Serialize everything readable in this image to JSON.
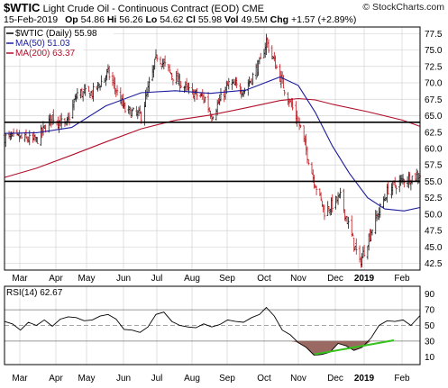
{
  "header": {
    "symbol": "$WTIC",
    "name": "Light Crude Oil - Continuous Contract (EOD)",
    "exchange": "CME",
    "watermark": "© StockCharts.com",
    "date": "15-Feb-2019",
    "op_label": "Op",
    "op": "54.86",
    "hi_label": "Hi",
    "hi": "56.26",
    "lo_label": "Lo",
    "lo": "54.62",
    "cl_label": "Cl",
    "cl": "55.98",
    "vol_label": "Vol",
    "vol": "49.5M",
    "chg_label": "Chg",
    "chg": "+1.57 (+2.89%)"
  },
  "legend": {
    "price": "$WTIC (Daily) 55.98",
    "ma50": "MA(50) 51.03",
    "ma200": "MA(200) 63.37",
    "rsi": "RSI(14) 62.67"
  },
  "colors": {
    "price": "#000000",
    "ma50": "#1c1c9c",
    "ma200": "#b0102a",
    "rsi_fill": "#9a6a62",
    "trend": "#34c21a",
    "grid": "#d4d4d4"
  },
  "chart_data": [
    {
      "type": "ohlc",
      "series": [
        {
          "name": "$WTIC (Daily)"
        },
        {
          "name": "MA(50)"
        },
        {
          "name": "MA(200)"
        }
      ],
      "x_labels": [
        "Mar",
        "Apr",
        "May",
        "Jun",
        "Jul",
        "Aug",
        "Sep",
        "Oct",
        "Nov",
        "Dec",
        "2019",
        "Feb"
      ],
      "y_ticks": [
        "42.5",
        "45.0",
        "47.5",
        "50.0",
        "52.5",
        "55.0",
        "57.5",
        "60.0",
        "62.5",
        "65.0",
        "67.5",
        "70.0",
        "72.5",
        "75.0",
        "77.5"
      ],
      "ylim": [
        41.5,
        78.5
      ],
      "horizontal_lines": [
        64.0,
        55.0
      ],
      "close_path": [
        [
          "2018-02-15",
          61.7
        ],
        [
          "2018-02-28",
          61.6
        ],
        [
          "2018-03-15",
          61.2
        ],
        [
          "2018-03-29",
          64.9
        ],
        [
          "2018-04-10",
          63.4
        ],
        [
          "2018-04-20",
          68.4
        ],
        [
          "2018-05-03",
          68.4
        ],
        [
          "2018-05-17",
          71.5
        ],
        [
          "2018-06-01",
          65.8
        ],
        [
          "2018-06-15",
          65.0
        ],
        [
          "2018-06-29",
          74.2
        ],
        [
          "2018-07-13",
          71.0
        ],
        [
          "2018-07-27",
          68.7
        ],
        [
          "2018-08-10",
          67.6
        ],
        [
          "2018-08-16",
          65.0
        ],
        [
          "2018-08-31",
          69.8
        ],
        [
          "2018-09-14",
          68.9
        ],
        [
          "2018-09-28",
          73.2
        ],
        [
          "2018-10-03",
          76.4
        ],
        [
          "2018-10-19",
          69.1
        ],
        [
          "2018-11-02",
          63.1
        ],
        [
          "2018-11-13",
          55.7
        ],
        [
          "2018-11-23",
          50.4
        ],
        [
          "2018-12-07",
          52.6
        ],
        [
          "2018-12-24",
          42.5
        ],
        [
          "2019-01-04",
          47.9
        ],
        [
          "2019-01-18",
          53.8
        ],
        [
          "2019-02-01",
          55.3
        ],
        [
          "2019-02-15",
          55.98
        ]
      ],
      "ma50_path": [
        [
          "2018-02-15",
          62.3
        ],
        [
          "2018-03-15",
          62.4
        ],
        [
          "2018-04-15",
          63.2
        ],
        [
          "2018-05-15",
          66.5
        ],
        [
          "2018-06-15",
          68.5
        ],
        [
          "2018-07-15",
          68.8
        ],
        [
          "2018-08-15",
          68.4
        ],
        [
          "2018-09-15",
          68.9
        ],
        [
          "2018-10-15",
          70.9
        ],
        [
          "2018-10-31",
          69.6
        ],
        [
          "2018-11-15",
          65.5
        ],
        [
          "2018-11-30",
          60.4
        ],
        [
          "2018-12-15",
          56.2
        ],
        [
          "2018-12-31",
          52.5
        ],
        [
          "2019-01-15",
          50.8
        ],
        [
          "2019-02-01",
          50.5
        ],
        [
          "2019-02-15",
          51.03
        ]
      ],
      "ma200_path": [
        [
          "2018-02-15",
          55.6
        ],
        [
          "2018-03-15",
          57.0
        ],
        [
          "2018-04-15",
          59.0
        ],
        [
          "2018-05-15",
          61.0
        ],
        [
          "2018-06-15",
          63.0
        ],
        [
          "2018-07-15",
          64.3
        ],
        [
          "2018-08-15",
          65.1
        ],
        [
          "2018-09-15",
          66.2
        ],
        [
          "2018-10-15",
          67.3
        ],
        [
          "2018-10-31",
          67.6
        ],
        [
          "2018-11-15",
          67.4
        ],
        [
          "2018-12-01",
          66.7
        ],
        [
          "2018-12-31",
          65.6
        ],
        [
          "2019-01-31",
          64.3
        ],
        [
          "2019-02-15",
          63.37
        ]
      ]
    },
    {
      "type": "line",
      "series": [
        {
          "name": "RSI(14)"
        }
      ],
      "x_labels": [
        "Mar",
        "Apr",
        "May",
        "Jun",
        "Jul",
        "Aug",
        "Sep",
        "Oct",
        "Nov",
        "Dec",
        "2019",
        "Feb"
      ],
      "y_ticks": [
        "10",
        "30",
        "50",
        "70",
        "90"
      ],
      "ylim": [
        0,
        100
      ],
      "reference_lines": [
        70,
        50,
        30
      ],
      "rsi_path": [
        [
          "2018-02-15",
          55
        ],
        [
          "2018-02-22",
          52
        ],
        [
          "2018-03-01",
          44
        ],
        [
          "2018-03-08",
          54
        ],
        [
          "2018-03-15",
          50
        ],
        [
          "2018-03-22",
          57
        ],
        [
          "2018-03-29",
          49
        ],
        [
          "2018-04-05",
          58
        ],
        [
          "2018-04-12",
          61
        ],
        [
          "2018-04-19",
          60
        ],
        [
          "2018-04-26",
          56
        ],
        [
          "2018-05-03",
          57
        ],
        [
          "2018-05-10",
          62
        ],
        [
          "2018-05-17",
          64
        ],
        [
          "2018-05-24",
          58
        ],
        [
          "2018-05-31",
          45
        ],
        [
          "2018-06-07",
          44
        ],
        [
          "2018-06-14",
          41
        ],
        [
          "2018-06-21",
          48
        ],
        [
          "2018-06-28",
          64
        ],
        [
          "2018-07-05",
          67
        ],
        [
          "2018-07-12",
          55
        ],
        [
          "2018-07-19",
          50
        ],
        [
          "2018-07-26",
          48
        ],
        [
          "2018-08-02",
          47
        ],
        [
          "2018-08-09",
          52
        ],
        [
          "2018-08-16",
          48
        ],
        [
          "2018-08-23",
          51
        ],
        [
          "2018-08-30",
          57
        ],
        [
          "2018-09-06",
          55
        ],
        [
          "2018-09-13",
          54
        ],
        [
          "2018-09-20",
          60
        ],
        [
          "2018-09-27",
          64
        ],
        [
          "2018-10-03",
          73
        ],
        [
          "2018-10-10",
          62
        ],
        [
          "2018-10-17",
          44
        ],
        [
          "2018-10-24",
          38
        ],
        [
          "2018-10-31",
          28
        ],
        [
          "2018-11-07",
          22
        ],
        [
          "2018-11-14",
          12
        ],
        [
          "2018-11-21",
          13
        ],
        [
          "2018-11-28",
          16
        ],
        [
          "2018-12-05",
          27
        ],
        [
          "2018-12-12",
          24
        ],
        [
          "2018-12-19",
          18
        ],
        [
          "2018-12-26",
          22
        ],
        [
          "2019-01-03",
          34
        ],
        [
          "2019-01-10",
          50
        ],
        [
          "2019-01-17",
          56
        ],
        [
          "2019-01-24",
          55
        ],
        [
          "2019-01-31",
          57
        ],
        [
          "2019-02-07",
          50
        ],
        [
          "2019-02-15",
          62.67
        ]
      ],
      "trendline": [
        [
          "2018-11-14",
          13
        ],
        [
          "2019-01-23",
          31
        ]
      ]
    }
  ]
}
